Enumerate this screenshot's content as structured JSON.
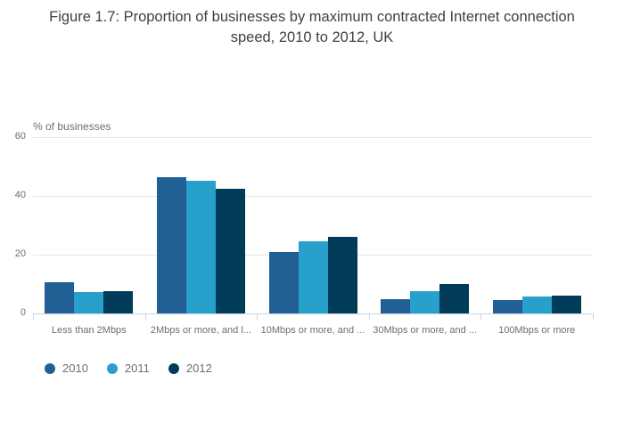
{
  "title": "Figure 1.7: Proportion of businesses by maximum contracted Internet connection speed, 2010 to 2012, UK",
  "chart_data": {
    "type": "bar",
    "title": "Figure 1.7: Proportion of businesses by maximum contracted Internet connection speed, 2010 to 2012, UK",
    "ylabel": "% of businesses",
    "xlabel": "",
    "categories": [
      "Less than 2Mbps",
      "2Mbps or more, and l...",
      "10Mbps or more, and ...",
      "30Mbps or more, and ...",
      "100Mbps or more"
    ],
    "series": [
      {
        "name": "2010",
        "color": "#206095",
        "values": [
          10.7,
          46.5,
          21.0,
          5.0,
          4.4
        ]
      },
      {
        "name": "2011",
        "color": "#27a0cc",
        "values": [
          7.2,
          45.3,
          24.5,
          7.5,
          5.7
        ]
      },
      {
        "name": "2012",
        "color": "#003c57",
        "values": [
          7.7,
          42.3,
          26.0,
          10.0,
          6.0
        ]
      }
    ],
    "ylim": [
      0,
      60
    ],
    "yticks": [
      0,
      20,
      40,
      60
    ],
    "grid": true,
    "legend_position": "bottom-left",
    "colors": {
      "gridline": "#e6e6e6",
      "axis_line": "#c6d3e8",
      "axis_text": "#6d6e71",
      "title_text": "#414042",
      "background": "#ffffff"
    }
  }
}
